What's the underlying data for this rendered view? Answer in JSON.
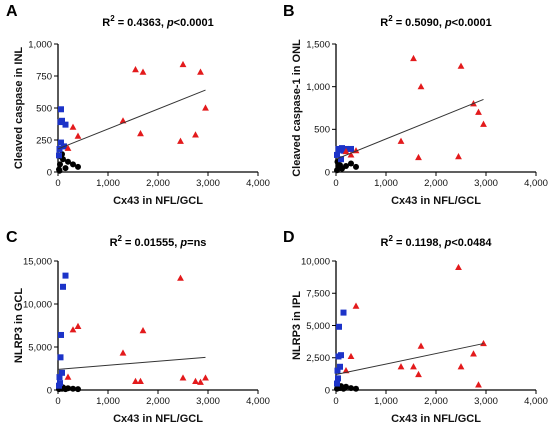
{
  "colors": {
    "black": "#000000",
    "blue": "#1c33c8",
    "red": "#e31a1c",
    "fit": "#333333"
  },
  "chart_data": [
    {
      "panel": "A",
      "type": "scatter",
      "title_prefix": "R",
      "title_sup": "2",
      "title_rest": " = 0.4363, ",
      "title_p": "p",
      "title_tail": "<0.0001",
      "xlabel": "Cx43 in NFL/GCL",
      "ylabel": "Cleaved caspase in INL",
      "xlim": [
        0,
        4000
      ],
      "ylim": [
        0,
        1000
      ],
      "xticks": [
        0,
        1000,
        2000,
        3000,
        4000
      ],
      "xtick_labels": [
        "0",
        "1,000",
        "2,000",
        "3,000",
        "4,000"
      ],
      "yticks": [
        0,
        250,
        500,
        750,
        1000
      ],
      "ytick_labels": [
        "0",
        "250",
        "500",
        "750",
        "1,000"
      ],
      "fit": {
        "x": [
          0,
          2950
        ],
        "y": [
          180,
          640
        ]
      },
      "series": [
        {
          "marker": "circle",
          "color": "black",
          "points": [
            [
              20,
              20
            ],
            [
              40,
              60
            ],
            [
              60,
              120
            ],
            [
              80,
              140
            ],
            [
              100,
              100
            ],
            [
              150,
              30
            ],
            [
              200,
              80
            ],
            [
              300,
              60
            ],
            [
              400,
              40
            ],
            [
              30,
              10
            ]
          ]
        },
        {
          "marker": "square",
          "color": "blue",
          "points": [
            [
              20,
              130
            ],
            [
              30,
              180
            ],
            [
              50,
              390
            ],
            [
              60,
              490
            ],
            [
              80,
              400
            ],
            [
              120,
              200
            ],
            [
              150,
              370
            ],
            [
              60,
              230
            ]
          ]
        },
        {
          "marker": "triangle",
          "color": "red",
          "points": [
            [
              200,
              185
            ],
            [
              300,
              350
            ],
            [
              400,
              280
            ],
            [
              1300,
              400
            ],
            [
              1550,
              800
            ],
            [
              1700,
              780
            ],
            [
              1650,
              300
            ],
            [
              2450,
              240
            ],
            [
              2500,
              840
            ],
            [
              2750,
              290
            ],
            [
              2850,
              780
            ],
            [
              2950,
              500
            ]
          ]
        }
      ]
    },
    {
      "panel": "B",
      "type": "scatter",
      "title_prefix": "R",
      "title_sup": "2",
      "title_rest": " = 0.5090, ",
      "title_p": "p",
      "title_tail": "<0.0001",
      "xlabel": "Cx43 in NFL/GCL",
      "ylabel": "Cleaved caspase-1 in ONL",
      "xlim": [
        0,
        4000
      ],
      "ylim": [
        0,
        1500
      ],
      "xticks": [
        0,
        1000,
        2000,
        3000,
        4000
      ],
      "xtick_labels": [
        "0",
        "1,000",
        "2,000",
        "3,000",
        "4,000"
      ],
      "yticks": [
        0,
        500,
        1000,
        1500
      ],
      "ytick_labels": [
        "0",
        "500",
        "1,000",
        "1,500"
      ],
      "fit": {
        "x": [
          0,
          2950
        ],
        "y": [
          150,
          850
        ]
      },
      "series": [
        {
          "marker": "circle",
          "color": "black",
          "points": [
            [
              20,
              20
            ],
            [
              50,
              60
            ],
            [
              80,
              80
            ],
            [
              120,
              40
            ],
            [
              200,
              70
            ],
            [
              300,
              100
            ],
            [
              400,
              60
            ],
            [
              30,
              120
            ]
          ]
        },
        {
          "marker": "square",
          "color": "blue",
          "points": [
            [
              20,
              200
            ],
            [
              50,
              270
            ],
            [
              80,
              260
            ],
            [
              120,
              280
            ],
            [
              150,
              250
            ],
            [
              200,
              270
            ],
            [
              300,
              270
            ],
            [
              100,
              150
            ]
          ]
        },
        {
          "marker": "triangle",
          "color": "red",
          "points": [
            [
              200,
              240
            ],
            [
              300,
              200
            ],
            [
              400,
              250
            ],
            [
              1300,
              360
            ],
            [
              1550,
              1330
            ],
            [
              1700,
              1000
            ],
            [
              1650,
              170
            ],
            [
              2450,
              180
            ],
            [
              2500,
              1240
            ],
            [
              2750,
              800
            ],
            [
              2850,
              700
            ],
            [
              2950,
              560
            ]
          ]
        }
      ]
    },
    {
      "panel": "C",
      "type": "scatter",
      "title_prefix": "R",
      "title_sup": "2",
      "title_rest": " = 0.01555, ",
      "title_p": "p",
      "title_tail": "=ns",
      "xlabel": "Cx43 in NFL/GCL",
      "ylabel": "NLRP3 in GCL",
      "xlim": [
        0,
        4000
      ],
      "ylim": [
        0,
        15000
      ],
      "xticks": [
        0,
        1000,
        2000,
        3000,
        4000
      ],
      "xtick_labels": [
        "0",
        "1,000",
        "2,000",
        "3,000",
        "4,000"
      ],
      "yticks": [
        0,
        5000,
        10000,
        15000
      ],
      "ytick_labels": [
        "0",
        "5,000",
        "10,000",
        "15,000"
      ],
      "fit": {
        "x": [
          0,
          2950
        ],
        "y": [
          2400,
          3800
        ]
      },
      "series": [
        {
          "marker": "circle",
          "color": "black",
          "points": [
            [
              20,
              100
            ],
            [
              50,
              200
            ],
            [
              80,
              150
            ],
            [
              150,
              100
            ],
            [
              200,
              200
            ],
            [
              300,
              150
            ],
            [
              400,
              100
            ],
            [
              100,
              300
            ]
          ]
        },
        {
          "marker": "square",
          "color": "blue",
          "points": [
            [
              20,
              500
            ],
            [
              30,
              1500
            ],
            [
              50,
              3800
            ],
            [
              60,
              6400
            ],
            [
              100,
              12000
            ],
            [
              150,
              13300
            ],
            [
              40,
              800
            ],
            [
              80,
              2000
            ]
          ]
        },
        {
          "marker": "triangle",
          "color": "red",
          "points": [
            [
              200,
              1500
            ],
            [
              300,
              7000
            ],
            [
              400,
              7400
            ],
            [
              1300,
              4300
            ],
            [
              1550,
              1000
            ],
            [
              1700,
              6900
            ],
            [
              1650,
              1000
            ],
            [
              2450,
              13000
            ],
            [
              2500,
              1400
            ],
            [
              2750,
              1000
            ],
            [
              2850,
              900
            ],
            [
              2950,
              1400
            ]
          ]
        }
      ]
    },
    {
      "panel": "D",
      "type": "scatter",
      "title_prefix": "R",
      "title_sup": "2",
      "title_rest": " = 0.1198, ",
      "title_p": "p",
      "title_tail": "<0.0484",
      "xlabel": "Cx43 in NFL/GCL",
      "ylabel": "NLRP3 in IPL",
      "xlim": [
        0,
        4000
      ],
      "ylim": [
        0,
        10000
      ],
      "xticks": [
        0,
        1000,
        2000,
        3000,
        4000
      ],
      "xtick_labels": [
        "0",
        "1,000",
        "2,000",
        "3,000",
        "4,000"
      ],
      "yticks": [
        0,
        2500,
        5000,
        7500,
        10000
      ],
      "ytick_labels": [
        "0",
        "2,500",
        "5,000",
        "7,500",
        "10,000"
      ],
      "fit": {
        "x": [
          0,
          2950
        ],
        "y": [
          1200,
          3600
        ]
      },
      "series": [
        {
          "marker": "circle",
          "color": "black",
          "points": [
            [
              20,
              100
            ],
            [
              50,
              200
            ],
            [
              80,
              150
            ],
            [
              150,
              100
            ],
            [
              200,
              250
            ],
            [
              300,
              150
            ],
            [
              400,
              100
            ],
            [
              100,
              300
            ]
          ]
        },
        {
          "marker": "square",
          "color": "blue",
          "points": [
            [
              20,
              500
            ],
            [
              30,
              1500
            ],
            [
              50,
              2600
            ],
            [
              60,
              4900
            ],
            [
              100,
              2700
            ],
            [
              150,
              6000
            ],
            [
              40,
              900
            ],
            [
              80,
              1800
            ]
          ]
        },
        {
          "marker": "triangle",
          "color": "red",
          "points": [
            [
              200,
              1500
            ],
            [
              300,
              2600
            ],
            [
              400,
              6500
            ],
            [
              1300,
              1800
            ],
            [
              1550,
              1800
            ],
            [
              1700,
              3400
            ],
            [
              1650,
              1200
            ],
            [
              2450,
              9500
            ],
            [
              2500,
              1800
            ],
            [
              2750,
              2800
            ],
            [
              2850,
              400
            ],
            [
              2950,
              3600
            ]
          ]
        }
      ]
    }
  ]
}
